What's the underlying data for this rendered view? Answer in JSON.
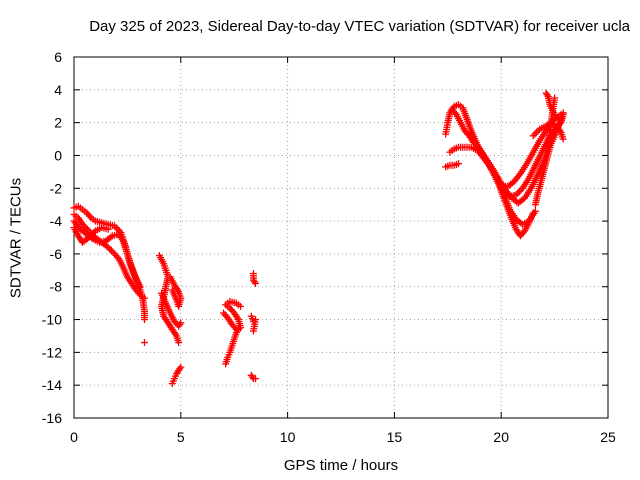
{
  "chart_data": {
    "type": "scatter",
    "title": "Day 325 of 2023, Sidereal Day-to-day VTEC variation (SDTVAR) for receiver ucla",
    "xlabel": "GPS time / hours",
    "ylabel": "SDTVAR / TECUs",
    "xlim": [
      0,
      25
    ],
    "ylim": [
      -16,
      6
    ],
    "xticks": [
      0,
      5,
      10,
      15,
      20,
      25
    ],
    "yticks": [
      -16,
      -14,
      -12,
      -10,
      -8,
      -6,
      -4,
      -2,
      0,
      2,
      4,
      6
    ],
    "grid": true,
    "marker": "plus",
    "color": "#ff0000",
    "series": [
      {
        "segments": [
          [
            [
              0.0,
              -3.2
            ],
            [
              0.2,
              -3.1
            ],
            [
              0.4,
              -3.3
            ],
            [
              0.6,
              -3.5
            ],
            [
              0.8,
              -3.8
            ],
            [
              1.0,
              -4.0
            ],
            [
              1.3,
              -4.1
            ],
            [
              1.6,
              -4.2
            ],
            [
              1.9,
              -4.3
            ],
            [
              2.2,
              -4.7
            ],
            [
              2.4,
              -5.5
            ],
            [
              2.6,
              -6.5
            ],
            [
              2.8,
              -7.2
            ],
            [
              3.0,
              -7.8
            ],
            [
              3.2,
              -8.6
            ],
            [
              3.3,
              -9.5
            ],
            [
              3.3,
              -10.0
            ]
          ],
          [
            [
              0.0,
              -3.6
            ],
            [
              0.2,
              -3.8
            ],
            [
              0.4,
              -4.2
            ],
            [
              0.7,
              -4.6
            ],
            [
              1.0,
              -5.0
            ],
            [
              1.3,
              -5.3
            ],
            [
              1.6,
              -5.6
            ],
            [
              1.9,
              -6.0
            ],
            [
              2.1,
              -6.3
            ],
            [
              2.3,
              -6.8
            ],
            [
              2.5,
              -7.4
            ],
            [
              2.7,
              -7.8
            ],
            [
              2.9,
              -8.2
            ],
            [
              3.1,
              -8.5
            ],
            [
              3.3,
              -8.7
            ]
          ],
          [
            [
              0.0,
              -4.0
            ],
            [
              0.3,
              -4.5
            ],
            [
              0.6,
              -4.8
            ],
            [
              0.9,
              -5.1
            ],
            [
              1.2,
              -5.3
            ],
            [
              1.5,
              -5.2
            ],
            [
              1.8,
              -4.9
            ],
            [
              2.1,
              -4.8
            ],
            [
              2.3,
              -5.2
            ],
            [
              2.5,
              -6.0
            ],
            [
              2.7,
              -6.8
            ],
            [
              2.9,
              -7.5
            ],
            [
              3.1,
              -8.0
            ]
          ],
          [
            [
              0.0,
              -4.4
            ],
            [
              0.2,
              -4.9
            ],
            [
              0.4,
              -5.3
            ],
            [
              0.7,
              -5.0
            ],
            [
              1.0,
              -4.6
            ],
            [
              1.3,
              -4.4
            ],
            [
              1.6,
              -4.5
            ]
          ],
          [
            [
              3.3,
              -11.4
            ]
          ],
          [
            [
              4.0,
              -6.1
            ],
            [
              4.2,
              -6.6
            ],
            [
              4.4,
              -7.4
            ],
            [
              4.3,
              -8.0
            ],
            [
              4.2,
              -8.6
            ],
            [
              4.1,
              -9.2
            ],
            [
              4.2,
              -9.8
            ],
            [
              4.4,
              -10.2
            ],
            [
              4.6,
              -10.6
            ],
            [
              4.8,
              -11.0
            ],
            [
              4.9,
              -11.4
            ]
          ],
          [
            [
              4.1,
              -8.4
            ],
            [
              4.3,
              -9.0
            ],
            [
              4.5,
              -9.6
            ],
            [
              4.7,
              -10.1
            ],
            [
              4.9,
              -10.4
            ],
            [
              5.0,
              -10.2
            ]
          ],
          [
            [
              4.5,
              -7.4
            ],
            [
              4.7,
              -7.9
            ],
            [
              4.9,
              -8.3
            ],
            [
              5.0,
              -8.7
            ],
            [
              4.9,
              -9.2
            ],
            [
              4.8,
              -8.8
            ],
            [
              4.6,
              -8.2
            ]
          ],
          [
            [
              4.6,
              -13.9
            ],
            [
              4.7,
              -13.6
            ],
            [
              4.8,
              -13.3
            ],
            [
              4.9,
              -13.1
            ],
            [
              5.0,
              -12.9
            ]
          ],
          [
            [
              7.1,
              -12.7
            ],
            [
              7.2,
              -12.3
            ],
            [
              7.3,
              -12.0
            ],
            [
              7.4,
              -11.6
            ],
            [
              7.5,
              -11.2
            ],
            [
              7.6,
              -10.8
            ],
            [
              7.7,
              -10.6
            ]
          ],
          [
            [
              7.0,
              -9.6
            ],
            [
              7.2,
              -9.9
            ],
            [
              7.4,
              -10.3
            ],
            [
              7.6,
              -10.6
            ],
            [
              7.8,
              -10.5
            ],
            [
              7.7,
              -10.0
            ],
            [
              7.5,
              -9.6
            ],
            [
              7.3,
              -9.3
            ],
            [
              7.1,
              -9.1
            ],
            [
              7.3,
              -8.9
            ],
            [
              7.6,
              -9.0
            ],
            [
              7.8,
              -9.2
            ]
          ],
          [
            [
              8.4,
              -7.2
            ],
            [
              8.4,
              -7.6
            ],
            [
              8.5,
              -7.8
            ]
          ],
          [
            [
              8.3,
              -9.8
            ],
            [
              8.4,
              -10.1
            ],
            [
              8.5,
              -10.0
            ],
            [
              8.4,
              -10.7
            ]
          ],
          [
            [
              8.3,
              -13.4
            ],
            [
              8.4,
              -13.6
            ],
            [
              8.5,
              -13.6
            ]
          ],
          [
            [
              17.4,
              1.3
            ],
            [
              17.5,
              2.0
            ],
            [
              17.6,
              2.6
            ],
            [
              17.8,
              3.0
            ],
            [
              18.0,
              3.1
            ],
            [
              18.2,
              2.9
            ],
            [
              18.4,
              2.2
            ],
            [
              18.6,
              1.5
            ],
            [
              18.8,
              0.9
            ],
            [
              19.0,
              0.3
            ],
            [
              19.3,
              -0.3
            ],
            [
              19.6,
              -1.0
            ],
            [
              19.9,
              -1.8
            ],
            [
              20.1,
              -2.5
            ],
            [
              20.3,
              -3.2
            ],
            [
              20.5,
              -3.9
            ],
            [
              20.7,
              -4.5
            ],
            [
              20.9,
              -4.9
            ],
            [
              21.1,
              -4.6
            ],
            [
              21.3,
              -4.1
            ],
            [
              21.5,
              -3.5
            ]
          ],
          [
            [
              17.7,
              2.8
            ],
            [
              17.9,
              2.5
            ],
            [
              18.1,
              2.0
            ],
            [
              18.3,
              1.5
            ],
            [
              18.5,
              1.2
            ],
            [
              18.7,
              0.8
            ],
            [
              19.0,
              0.4
            ],
            [
              19.3,
              -0.2
            ],
            [
              19.6,
              -0.8
            ],
            [
              19.9,
              -1.5
            ],
            [
              20.2,
              -2.1
            ],
            [
              20.5,
              -2.6
            ],
            [
              20.8,
              -2.9
            ],
            [
              21.1,
              -2.6
            ],
            [
              21.4,
              -2.0
            ],
            [
              21.7,
              -1.2
            ],
            [
              22.0,
              -0.3
            ],
            [
              22.2,
              0.6
            ],
            [
              22.3,
              1.6
            ],
            [
              22.4,
              2.6
            ],
            [
              22.5,
              3.5
            ]
          ],
          [
            [
              17.6,
              0.2
            ],
            [
              17.8,
              0.4
            ],
            [
              18.0,
              0.5
            ],
            [
              18.3,
              0.5
            ],
            [
              18.6,
              0.5
            ],
            [
              18.9,
              0.3
            ],
            [
              19.2,
              -0.2
            ],
            [
              19.5,
              -0.7
            ],
            [
              19.8,
              -1.3
            ],
            [
              20.0,
              -2.0
            ],
            [
              20.2,
              -2.6
            ],
            [
              20.4,
              -3.3
            ],
            [
              20.7,
              -3.9
            ],
            [
              21.0,
              -4.2
            ],
            [
              21.3,
              -4.0
            ],
            [
              21.6,
              -3.4
            ]
          ],
          [
            [
              17.4,
              -0.7
            ],
            [
              17.6,
              -0.6
            ],
            [
              17.8,
              -0.6
            ],
            [
              18.0,
              -0.5
            ]
          ],
          [
            [
              20.1,
              -2.2
            ],
            [
              20.4,
              -2.5
            ],
            [
              20.7,
              -2.4
            ],
            [
              21.0,
              -2.0
            ],
            [
              21.3,
              -1.4
            ],
            [
              21.6,
              -0.6
            ],
            [
              21.9,
              0.2
            ],
            [
              22.2,
              1.0
            ],
            [
              22.5,
              1.6
            ],
            [
              22.8,
              2.0
            ],
            [
              22.9,
              2.5
            ],
            [
              22.8,
              2.2
            ],
            [
              22.6,
              1.5
            ],
            [
              22.3,
              0.6
            ],
            [
              22.1,
              -0.4
            ],
            [
              21.9,
              -1.4
            ],
            [
              21.7,
              -2.4
            ],
            [
              21.6,
              -3.0
            ]
          ],
          [
            [
              20.0,
              -1.8
            ],
            [
              20.3,
              -1.9
            ],
            [
              20.6,
              -1.6
            ],
            [
              20.9,
              -1.1
            ],
            [
              21.2,
              -0.5
            ],
            [
              21.5,
              0.2
            ],
            [
              21.8,
              0.9
            ],
            [
              22.1,
              1.5
            ],
            [
              22.4,
              2.1
            ],
            [
              22.7,
              2.4
            ],
            [
              22.9,
              2.6
            ]
          ],
          [
            [
              21.5,
              1.2
            ],
            [
              21.8,
              1.6
            ],
            [
              22.1,
              1.8
            ],
            [
              22.3,
              2.0
            ],
            [
              22.6,
              1.8
            ],
            [
              22.8,
              1.4
            ],
            [
              22.9,
              1.0
            ]
          ],
          [
            [
              22.1,
              3.8
            ],
            [
              22.2,
              3.6
            ],
            [
              22.3,
              3.0
            ],
            [
              22.5,
              2.5
            ]
          ]
        ]
      }
    ]
  }
}
